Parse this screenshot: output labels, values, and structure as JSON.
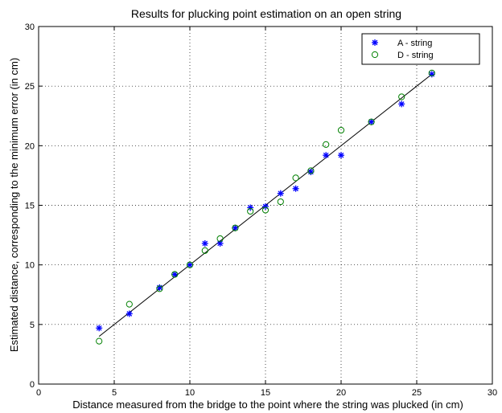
{
  "chart_data": {
    "type": "scatter",
    "title": "Results for plucking point estimation on an open string",
    "xlabel": "Distance measured from the bridge to the point where the string was plucked (in cm)",
    "ylabel": "Estimated distance, corresponding to the minimum error (in cm)",
    "xlim": [
      0,
      30
    ],
    "ylim": [
      0,
      30
    ],
    "xticks": [
      0,
      5,
      10,
      15,
      20,
      25,
      30
    ],
    "yticks": [
      0,
      5,
      10,
      15,
      20,
      25,
      30
    ],
    "grid": true,
    "legend_position": "top-right",
    "series": [
      {
        "name": "A - string",
        "marker": "asterisk",
        "color": "#0000ff",
        "points": [
          [
            4,
            4.7
          ],
          [
            6,
            5.9
          ],
          [
            8,
            8.1
          ],
          [
            9,
            9.2
          ],
          [
            10,
            10
          ],
          [
            11,
            11.8
          ],
          [
            12,
            11.8
          ],
          [
            13,
            13.1
          ],
          [
            14,
            14.8
          ],
          [
            15,
            14.9
          ],
          [
            16,
            16
          ],
          [
            17,
            16.4
          ],
          [
            18,
            17.8
          ],
          [
            19,
            19.2
          ],
          [
            20,
            19.2
          ],
          [
            22,
            22
          ],
          [
            24,
            23.5
          ],
          [
            26,
            26
          ]
        ]
      },
      {
        "name": "D - string",
        "marker": "circle",
        "color": "#008000",
        "points": [
          [
            4,
            3.6
          ],
          [
            6,
            6.7
          ],
          [
            8,
            8
          ],
          [
            9,
            9.2
          ],
          [
            10,
            10
          ],
          [
            11,
            11.2
          ],
          [
            12,
            12.2
          ],
          [
            13,
            13.1
          ],
          [
            14,
            14.5
          ],
          [
            15,
            14.6
          ],
          [
            16,
            15.3
          ],
          [
            17,
            17.3
          ],
          [
            18,
            17.9
          ],
          [
            19,
            20.1
          ],
          [
            20,
            21.3
          ],
          [
            22,
            22
          ],
          [
            24,
            24.1
          ],
          [
            26,
            26.1
          ]
        ]
      }
    ],
    "reference_line": {
      "from": [
        4,
        4
      ],
      "to": [
        26,
        26
      ],
      "color": "#000000"
    }
  }
}
